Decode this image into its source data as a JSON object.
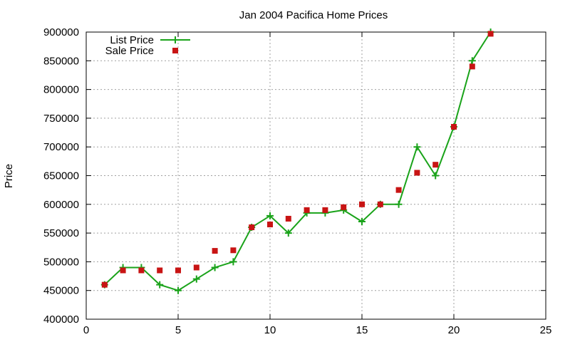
{
  "chart_data": {
    "type": "line",
    "title": "Jan 2004 Pacifica Home Prices",
    "xlabel": "",
    "ylabel": "Price",
    "xlim": [
      0,
      25
    ],
    "ylim": [
      400000,
      900000
    ],
    "xticks": [
      0,
      5,
      10,
      15,
      20,
      25
    ],
    "yticks": [
      400000,
      450000,
      500000,
      550000,
      600000,
      650000,
      700000,
      750000,
      800000,
      850000,
      900000
    ],
    "grid": true,
    "legend_position": "top-left",
    "series": [
      {
        "name": "List Price",
        "style": "line+cross",
        "color": "#1aa31a",
        "x": [
          1,
          2,
          3,
          4,
          5,
          6,
          7,
          8,
          9,
          10,
          11,
          12,
          13,
          14,
          15,
          16,
          17,
          18,
          19,
          20,
          21,
          22
        ],
        "y": [
          460000,
          490000,
          490000,
          460000,
          450000,
          470000,
          490000,
          500000,
          560000,
          580000,
          550000,
          585000,
          585000,
          590000,
          570000,
          600000,
          600000,
          700000,
          650000,
          735000,
          850000,
          900000
        ]
      },
      {
        "name": "Sale Price",
        "style": "square",
        "color": "#c81414",
        "x": [
          1,
          2,
          3,
          4,
          5,
          6,
          7,
          8,
          9,
          10,
          11,
          12,
          13,
          14,
          15,
          16,
          17,
          18,
          19,
          20,
          21,
          22
        ],
        "y": [
          460000,
          485000,
          485000,
          485000,
          485000,
          490000,
          519000,
          520000,
          560000,
          565000,
          575000,
          590000,
          590000,
          595000,
          600000,
          600000,
          625000,
          655000,
          669000,
          735000,
          840000,
          897000
        ]
      }
    ]
  }
}
